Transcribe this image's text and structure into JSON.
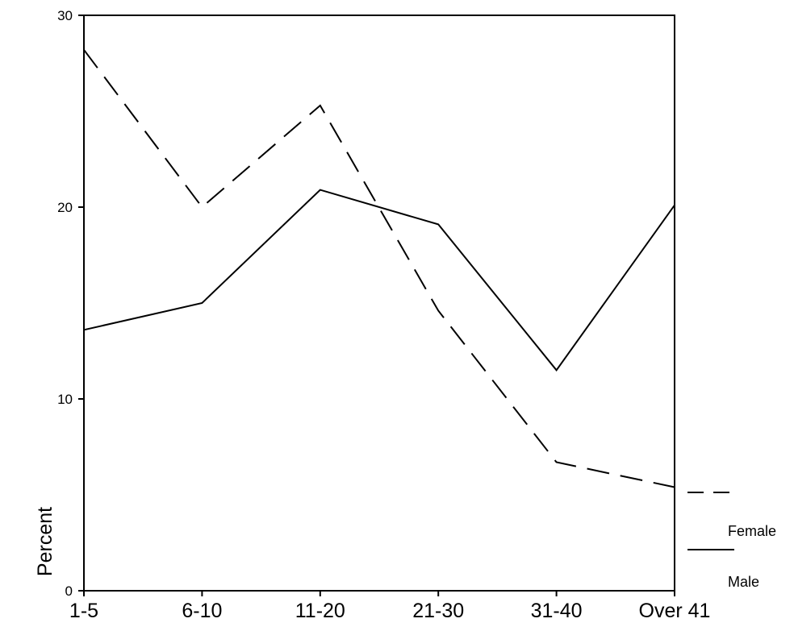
{
  "chart_data": {
    "type": "line",
    "categories": [
      "1-5",
      "6-10",
      "11-20",
      "21-30",
      "31-40",
      "Over 41"
    ],
    "ylabel": "Percent",
    "xlabel": "",
    "ylim": [
      0,
      30
    ],
    "yticks": [
      "0",
      "10",
      "20",
      "30"
    ],
    "grid": false,
    "legend_position": "right",
    "series": [
      {
        "name": "Female",
        "line_style": "dashed",
        "color": "#000000",
        "values": [
          28.2,
          20.0,
          25.3,
          14.6,
          6.7,
          5.4
        ]
      },
      {
        "name": "Male",
        "line_style": "solid",
        "color": "#000000",
        "values": [
          13.6,
          15.0,
          20.9,
          19.1,
          11.5,
          20.1
        ]
      }
    ]
  }
}
